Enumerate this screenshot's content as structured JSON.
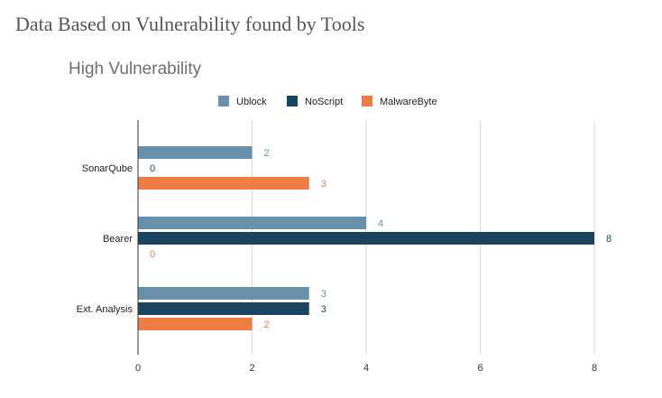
{
  "page": {
    "heading": "Data Based on Vulnerability found by Tools"
  },
  "chart_data": {
    "type": "bar",
    "orientation": "horizontal",
    "title": "High Vulnerability",
    "categories": [
      "SonarQube",
      "Bearer",
      "Ext. Analysis"
    ],
    "series": [
      {
        "name": "Ublock",
        "color": "#6890ab",
        "values": [
          2,
          4,
          3
        ]
      },
      {
        "name": "NoScript",
        "color": "#1c435f",
        "values": [
          0,
          8,
          3
        ]
      },
      {
        "name": "MalwareByte",
        "color": "#ee7d45",
        "values": [
          3,
          0,
          2
        ]
      }
    ],
    "xlim": [
      0,
      8
    ],
    "xticks": [
      "0",
      "2",
      "4",
      "6",
      "8"
    ],
    "xlabel": "",
    "ylabel": "",
    "grid": true,
    "legend_position": "top"
  }
}
